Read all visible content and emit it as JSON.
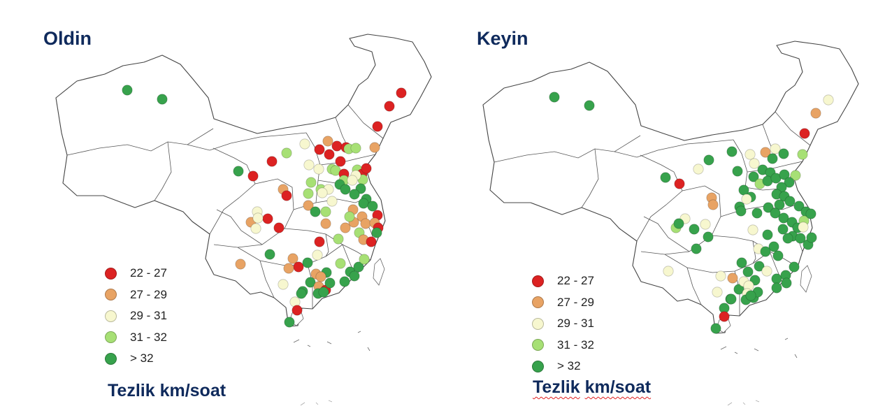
{
  "panels": [
    {
      "title": "Oldin",
      "caption": [
        "Tezlik",
        "km/soat"
      ],
      "points": [
        [
          182,
          129,
          4
        ],
        [
          232,
          142,
          4
        ],
        [
          574,
          133,
          0
        ],
        [
          557,
          152,
          0
        ],
        [
          540,
          181,
          0
        ],
        [
          536,
          211,
          1
        ],
        [
          436,
          206,
          2
        ],
        [
          410,
          219,
          3
        ],
        [
          457,
          214,
          0
        ],
        [
          469,
          202,
          1
        ],
        [
          482,
          209,
          0
        ],
        [
          495,
          211,
          0
        ],
        [
          471,
          221,
          0
        ],
        [
          499,
          213,
          3
        ],
        [
          509,
          212,
          3
        ],
        [
          341,
          245,
          4
        ],
        [
          362,
          252,
          0
        ],
        [
          389,
          231,
          0
        ],
        [
          405,
          271,
          1
        ],
        [
          410,
          280,
          0
        ],
        [
          487,
          231,
          0
        ],
        [
          475,
          242,
          3
        ],
        [
          442,
          236,
          2
        ],
        [
          456,
          242,
          2
        ],
        [
          480,
          244,
          3
        ],
        [
          492,
          249,
          0
        ],
        [
          511,
          243,
          3
        ],
        [
          518,
          249,
          0
        ],
        [
          524,
          241,
          0
        ],
        [
          519,
          257,
          3
        ],
        [
          509,
          251,
          2
        ],
        [
          445,
          261,
          3
        ],
        [
          441,
          277,
          3
        ],
        [
          459,
          271,
          3
        ],
        [
          470,
          271,
          2
        ],
        [
          492,
          258,
          3
        ],
        [
          504,
          258,
          2
        ],
        [
          516,
          270,
          4
        ],
        [
          486,
          264,
          4
        ],
        [
          494,
          271,
          4
        ],
        [
          507,
          278,
          4
        ],
        [
          524,
          285,
          4
        ],
        [
          461,
          276,
          2
        ],
        [
          475,
          288,
          2
        ],
        [
          441,
          294,
          1
        ],
        [
          451,
          303,
          4
        ],
        [
          466,
          303,
          3
        ],
        [
          368,
          303,
          2
        ],
        [
          383,
          313,
          0
        ],
        [
          359,
          318,
          1
        ],
        [
          399,
          326,
          0
        ],
        [
          366,
          327,
          2
        ],
        [
          369,
          312,
          2
        ],
        [
          505,
          300,
          1
        ],
        [
          520,
          291,
          4
        ],
        [
          533,
          295,
          4
        ],
        [
          540,
          308,
          0
        ],
        [
          518,
          310,
          1
        ],
        [
          506,
          318,
          1
        ],
        [
          523,
          320,
          1
        ],
        [
          536,
          319,
          1
        ],
        [
          541,
          326,
          0
        ],
        [
          514,
          333,
          3
        ],
        [
          520,
          343,
          1
        ],
        [
          531,
          346,
          0
        ],
        [
          539,
          333,
          4
        ],
        [
          466,
          320,
          1
        ],
        [
          484,
          342,
          3
        ],
        [
          457,
          346,
          0
        ],
        [
          500,
          310,
          3
        ],
        [
          494,
          326,
          1
        ],
        [
          386,
          364,
          4
        ],
        [
          419,
          370,
          1
        ],
        [
          427,
          382,
          0
        ],
        [
          440,
          376,
          4
        ],
        [
          454,
          365,
          2
        ],
        [
          344,
          378,
          1
        ],
        [
          413,
          384,
          1
        ],
        [
          405,
          407,
          2
        ],
        [
          433,
          417,
          4
        ],
        [
          444,
          404,
          4
        ],
        [
          452,
          392,
          1
        ],
        [
          467,
          390,
          4
        ],
        [
          487,
          377,
          3
        ],
        [
          501,
          389,
          4
        ],
        [
          513,
          382,
          4
        ],
        [
          521,
          371,
          3
        ],
        [
          507,
          395,
          4
        ],
        [
          493,
          403,
          4
        ],
        [
          459,
          396,
          1
        ],
        [
          456,
          410,
          1
        ],
        [
          466,
          415,
          0
        ],
        [
          472,
          405,
          4
        ],
        [
          455,
          420,
          4
        ],
        [
          463,
          418,
          4
        ],
        [
          422,
          432,
          2
        ],
        [
          431,
          420,
          4
        ],
        [
          425,
          444,
          0
        ],
        [
          414,
          461,
          4
        ]
      ]
    },
    {
      "title": "Keyin",
      "caption": [
        "Tezlik",
        "km/soat"
      ],
      "points": [
        [
          160,
          139,
          4
        ],
        [
          210,
          151,
          4
        ],
        [
          552,
          143,
          2
        ],
        [
          534,
          162,
          1
        ],
        [
          518,
          191,
          0
        ],
        [
          515,
          221,
          3
        ],
        [
          414,
          217,
          4
        ],
        [
          440,
          221,
          2
        ],
        [
          462,
          218,
          1
        ],
        [
          476,
          213,
          2
        ],
        [
          446,
          234,
          2
        ],
        [
          472,
          227,
          4
        ],
        [
          488,
          220,
          4
        ],
        [
          458,
          243,
          4
        ],
        [
          469,
          247,
          4
        ],
        [
          319,
          254,
          4
        ],
        [
          339,
          263,
          0
        ],
        [
          366,
          242,
          2
        ],
        [
          385,
          283,
          1
        ],
        [
          387,
          293,
          1
        ],
        [
          381,
          229,
          4
        ],
        [
          422,
          245,
          4
        ],
        [
          445,
          253,
          4
        ],
        [
          454,
          263,
          3
        ],
        [
          465,
          259,
          4
        ],
        [
          477,
          255,
          4
        ],
        [
          489,
          250,
          4
        ],
        [
          505,
          251,
          3
        ],
        [
          496,
          261,
          4
        ],
        [
          485,
          268,
          4
        ],
        [
          478,
          278,
          4
        ],
        [
          489,
          281,
          4
        ],
        [
          431,
          272,
          4
        ],
        [
          441,
          282,
          4
        ],
        [
          425,
          296,
          4
        ],
        [
          435,
          285,
          2
        ],
        [
          427,
          302,
          4
        ],
        [
          450,
          305,
          4
        ],
        [
          466,
          297,
          4
        ],
        [
          482,
          293,
          4
        ],
        [
          497,
          288,
          4
        ],
        [
          510,
          295,
          4
        ],
        [
          520,
          303,
          4
        ],
        [
          476,
          305,
          4
        ],
        [
          488,
          312,
          4
        ],
        [
          500,
          318,
          4
        ],
        [
          508,
          326,
          4
        ],
        [
          517,
          316,
          3
        ],
        [
          487,
          328,
          4
        ],
        [
          501,
          338,
          4
        ],
        [
          512,
          341,
          4
        ],
        [
          523,
          350,
          4
        ],
        [
          494,
          341,
          4
        ],
        [
          347,
          313,
          2
        ],
        [
          334,
          326,
          3
        ],
        [
          338,
          320,
          4
        ],
        [
          360,
          328,
          4
        ],
        [
          380,
          339,
          4
        ],
        [
          376,
          321,
          2
        ],
        [
          444,
          329,
          2
        ],
        [
          465,
          336,
          4
        ],
        [
          474,
          353,
          4
        ],
        [
          452,
          356,
          2
        ],
        [
          480,
          366,
          4
        ],
        [
          462,
          360,
          4
        ],
        [
          527,
          306,
          4
        ],
        [
          516,
          325,
          2
        ],
        [
          528,
          340,
          4
        ],
        [
          363,
          356,
          4
        ],
        [
          428,
          376,
          4
        ],
        [
          415,
          398,
          1
        ],
        [
          437,
          389,
          4
        ],
        [
          453,
          381,
          4
        ],
        [
          323,
          388,
          2
        ],
        [
          398,
          395,
          2
        ],
        [
          393,
          418,
          2
        ],
        [
          412,
          428,
          4
        ],
        [
          424,
          414,
          4
        ],
        [
          431,
          403,
          2
        ],
        [
          447,
          401,
          4
        ],
        [
          464,
          388,
          2
        ],
        [
          478,
          399,
          4
        ],
        [
          491,
          394,
          4
        ],
        [
          503,
          382,
          4
        ],
        [
          492,
          405,
          4
        ],
        [
          478,
          412,
          4
        ],
        [
          438,
          409,
          2
        ],
        [
          436,
          420,
          2
        ],
        [
          445,
          426,
          4
        ],
        [
          451,
          418,
          4
        ],
        [
          434,
          429,
          4
        ],
        [
          441,
          423,
          4
        ],
        [
          403,
          441,
          4
        ],
        [
          413,
          428,
          4
        ],
        [
          403,
          453,
          0
        ],
        [
          391,
          470,
          4
        ]
      ]
    }
  ],
  "legend": [
    {
      "label": "22 - 27",
      "color": "#dc2222"
    },
    {
      "label": "27 - 29",
      "color": "#e8a364"
    },
    {
      "label": "29 - 31",
      "color": "#f7f7cf"
    },
    {
      "label": "31 - 32",
      "color": "#a7e075"
    },
    {
      "label": "> 32",
      "color": "#37a24c"
    }
  ]
}
